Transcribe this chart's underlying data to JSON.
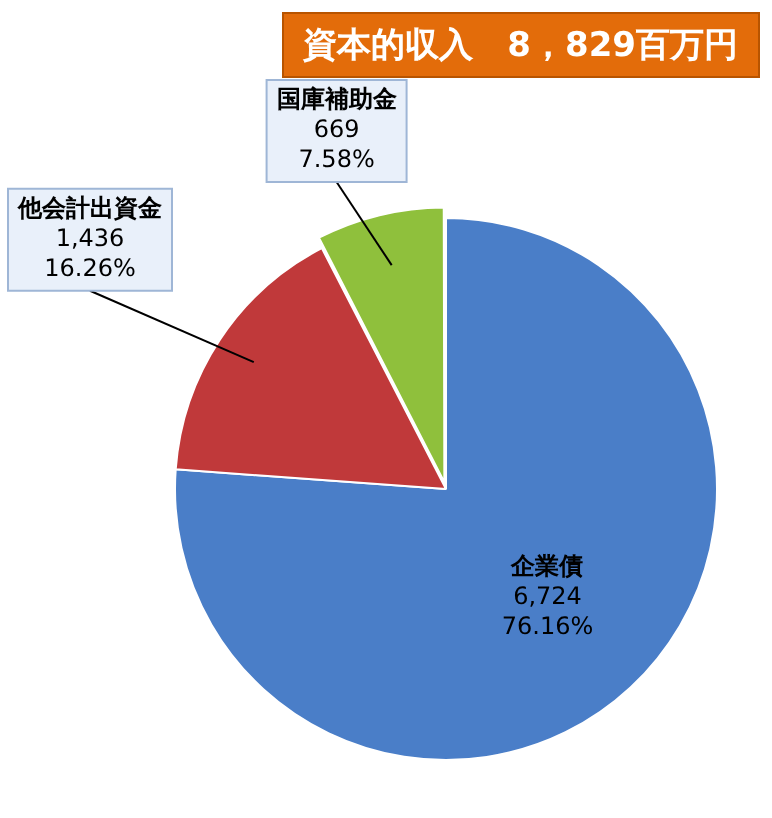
{
  "chart_data": {
    "type": "pie",
    "title": "資本的収入　8，829百万円",
    "categories": [
      "企業債",
      "他会計出資金",
      "国庫補助金"
    ],
    "values": [
      6724,
      1436,
      669
    ],
    "colors": [
      "#4a7ec8",
      "#c0393a",
      "#8fc03c"
    ],
    "value_labels": [
      "6,724\n76.16%",
      "1,436\n16.26%",
      "669\n7.58%"
    ]
  }
}
